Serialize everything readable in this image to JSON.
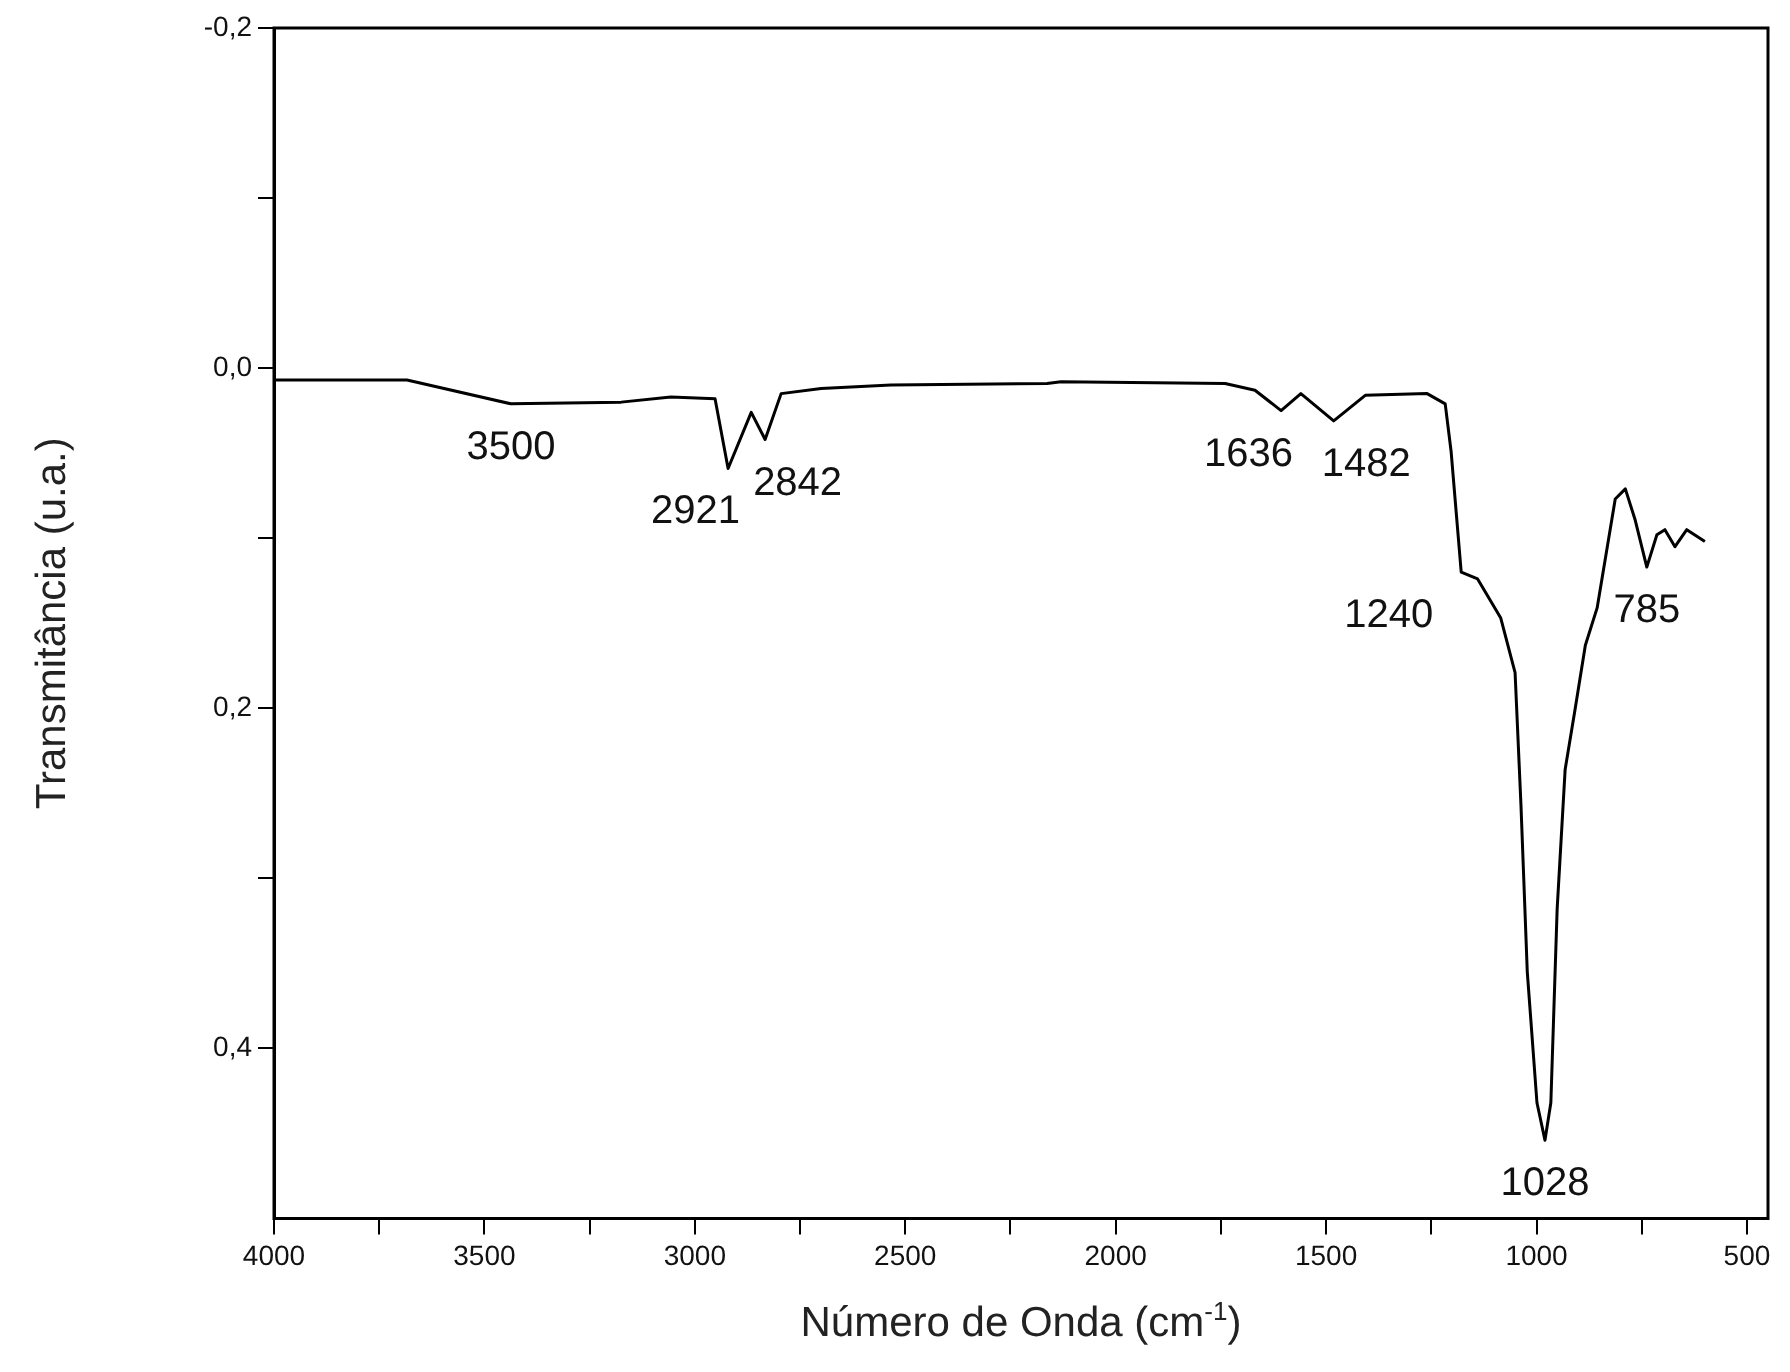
{
  "chart_data": {
    "type": "line",
    "xlabel": "Número de Onda (cm$^{-1}$)",
    "ylabel": "Transmitância (u.a.)",
    "xlim": [
      4000,
      450
    ],
    "ylim": [
      0.5,
      -0.2
    ],
    "xticks": [
      4000,
      {
        "value": 3750,
        "label": null
      },
      3500,
      {
        "value": 3250,
        "label": null
      },
      3000,
      {
        "value": 2750,
        "label": null
      },
      2500,
      {
        "value": 2250,
        "label": null
      },
      2000,
      {
        "value": 1750,
        "label": null
      },
      1500,
      {
        "value": 1250,
        "label": null
      },
      1000,
      {
        "value": 750,
        "label": null
      },
      500
    ],
    "yticks": [
      {
        "value": -0.2,
        "label": "-0,2"
      },
      {
        "value": -0.1,
        "label": null
      },
      {
        "value": 0.0,
        "label": "0,0"
      },
      {
        "value": 0.1,
        "label": null
      },
      {
        "value": 0.2,
        "label": "0,2"
      },
      {
        "value": 0.3,
        "label": null
      },
      {
        "value": 0.4,
        "label": "0,4"
      }
    ],
    "grid": false,
    "legend": false,
    "marker": "none",
    "line_style": "solid",
    "series": [
      {
        "color": "#000000",
        "x": [
          4000,
          3684,
          3437,
          3175,
          3057,
          2952,
          2921,
          2866,
          2833,
          2795,
          2700,
          2534,
          2163,
          2130,
          1740,
          1669,
          1607,
          1560,
          1482,
          1407,
          1260,
          1217,
          1203,
          1179,
          1140,
          1085,
          1051,
          1037,
          1022,
          999,
          980,
          966,
          951,
          932,
          908,
          884,
          856,
          813,
          789,
          766,
          738,
          714,
          695,
          671,
          643,
          600
        ],
        "values": [
          0.007,
          0.007,
          0.021,
          0.02,
          0.017,
          0.018,
          0.059,
          0.026,
          0.042,
          0.015,
          0.012,
          0.01,
          0.009,
          0.008,
          0.009,
          0.013,
          0.025,
          0.015,
          0.031,
          0.016,
          0.015,
          0.021,
          0.049,
          0.12,
          0.124,
          0.147,
          0.179,
          0.257,
          0.355,
          0.432,
          0.454,
          0.432,
          0.318,
          0.236,
          0.2,
          0.163,
          0.141,
          0.077,
          0.071,
          0.089,
          0.117,
          0.098,
          0.095,
          0.105,
          0.095,
          0.102
        ]
      }
    ],
    "annotations": [
      {
        "text": "3500",
        "x": 3437,
        "y": 0.021
      },
      {
        "text": "2921",
        "x": 2921,
        "y": 0.059
      },
      {
        "text": "2842",
        "x": 2833,
        "y": 0.042
      },
      {
        "text": "1636",
        "x": 1607,
        "y": 0.025
      },
      {
        "text": "1482",
        "x": 1482,
        "y": 0.031
      },
      {
        "text": "1240",
        "x": 1179,
        "y": 0.12
      },
      {
        "text": "785",
        "x": 738,
        "y": 0.117
      },
      {
        "text": "1028",
        "x": 980,
        "y": 0.454
      }
    ]
  }
}
